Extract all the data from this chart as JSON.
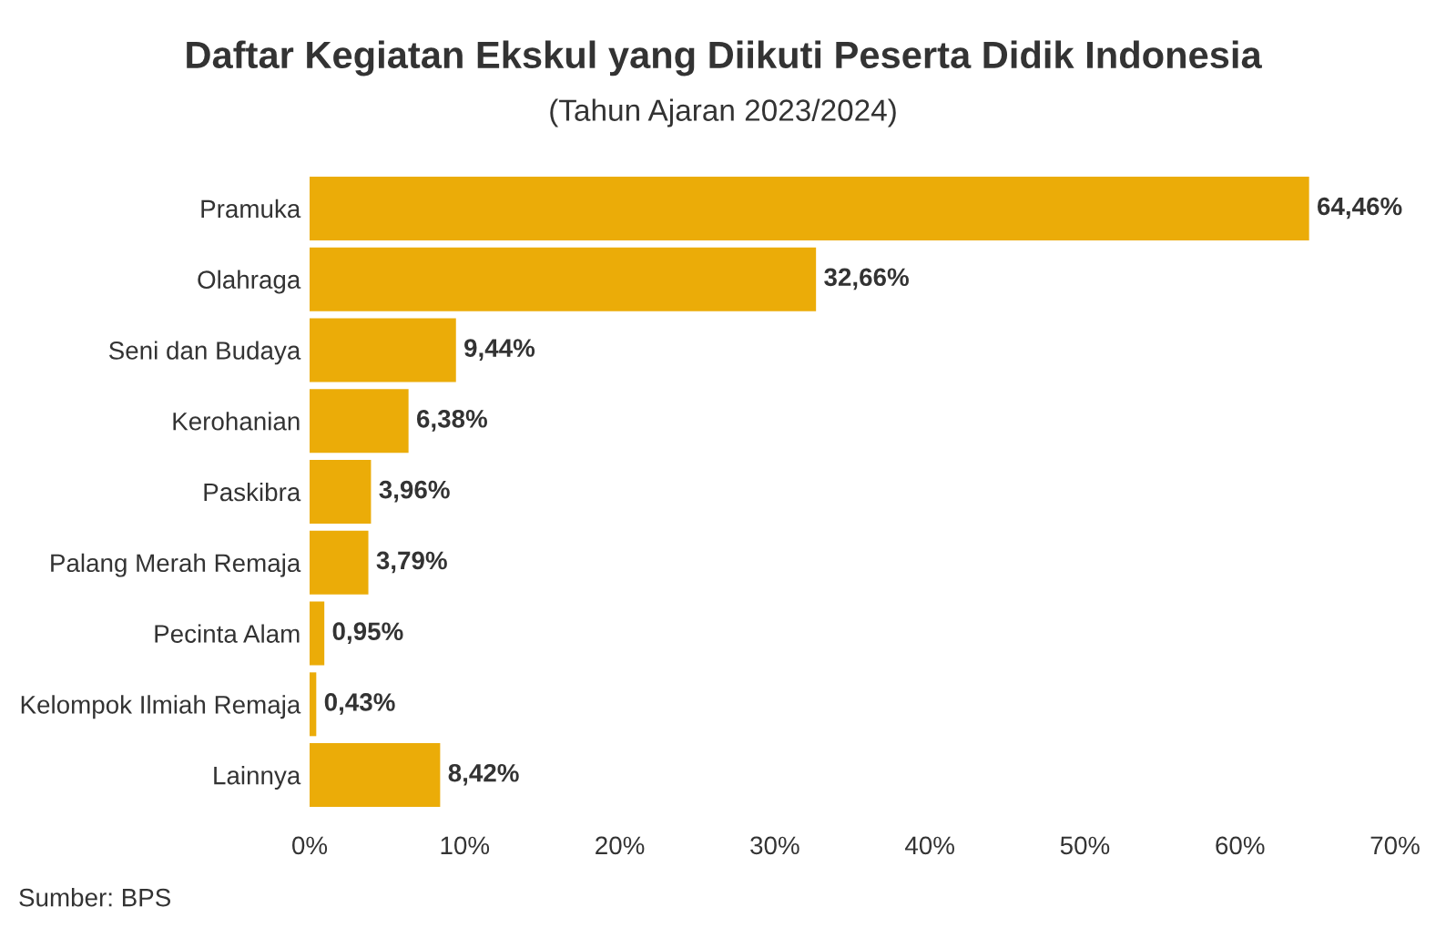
{
  "chart_data": {
    "type": "bar",
    "orientation": "horizontal",
    "title": "Daftar Kegiatan Ekskul yang Diikuti Peserta Didik Indonesia",
    "subtitle": "(Tahun Ajaran 2023/2024)",
    "categories": [
      "Pramuka",
      "Olahraga",
      "Seni dan Budaya",
      "Kerohanian",
      "Paskibra",
      "Palang Merah Remaja",
      "Pecinta Alam",
      "Kelompok Ilmiah Remaja",
      "Lainnya"
    ],
    "values": [
      64.46,
      32.66,
      9.44,
      6.38,
      3.96,
      3.79,
      0.95,
      0.43,
      8.42
    ],
    "value_labels": [
      "64,46%",
      "32,66%",
      "9,44%",
      "6,38%",
      "3,96%",
      "3,79%",
      "0,95%",
      "0,43%",
      "8,42%"
    ],
    "color": "#ebac08",
    "xlim": [
      0,
      70
    ],
    "xticks": [
      {
        "value": 0,
        "label": "0%"
      },
      {
        "value": 10,
        "label": "10%"
      },
      {
        "value": 20,
        "label": "20%"
      },
      {
        "value": 30,
        "label": "30%"
      },
      {
        "value": 40,
        "label": "40%"
      },
      {
        "value": 50,
        "label": "50%"
      },
      {
        "value": 60,
        "label": "60%"
      },
      {
        "value": 70,
        "label": "70%"
      }
    ],
    "grid": false,
    "legend": false,
    "annotations": [
      "Sumber: BPS"
    ]
  }
}
